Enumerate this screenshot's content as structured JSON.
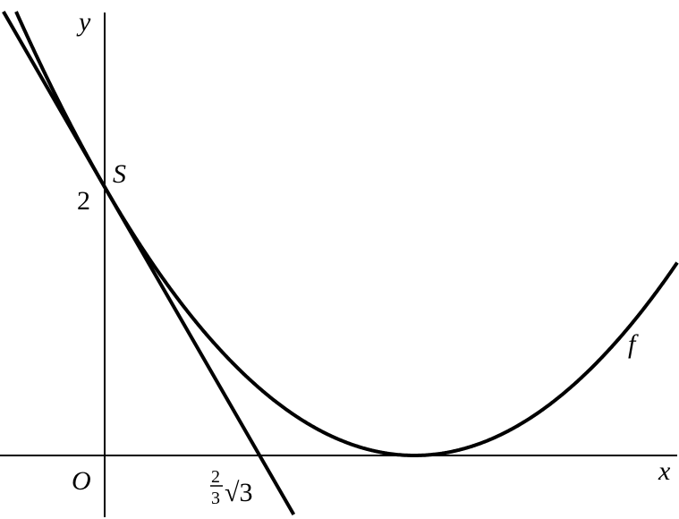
{
  "labels": {
    "y_axis": "y",
    "x_axis": "x",
    "origin": "O",
    "point_s": "S",
    "y_value": "2",
    "x_intercept_num": "2",
    "x_intercept_den": "3",
    "x_intercept_root": "√3",
    "curve": "f"
  },
  "colors": {
    "stroke": "#000000",
    "background": "#ffffff"
  }
}
